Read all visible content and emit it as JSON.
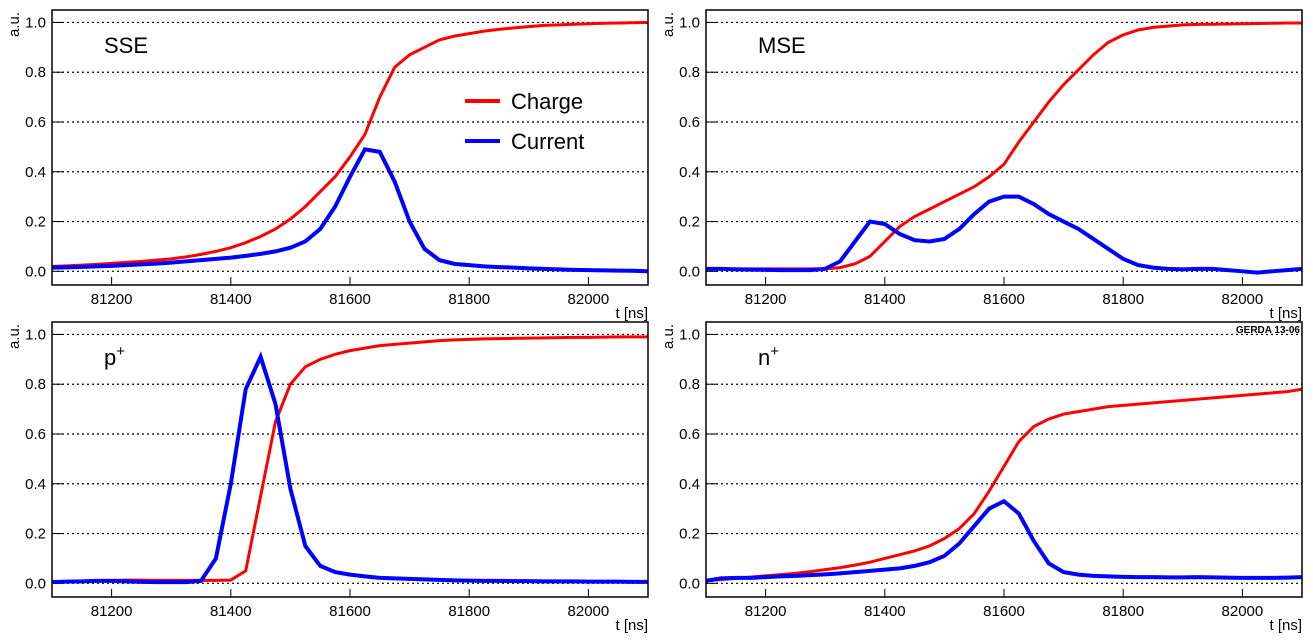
{
  "chart_data": [
    {
      "type": "line",
      "annotation": "SSE",
      "y_label": "a.u.",
      "x_label": "t [ns]",
      "legend": "upper right",
      "grid": true,
      "xlim": [
        81100,
        82100
      ],
      "xticks": [
        81200,
        81400,
        81600,
        81800,
        82000
      ],
      "ylim": [
        -0.055,
        1.05
      ],
      "yticks": [
        {
          "value": 0,
          "label": "0.0"
        },
        0.2,
        0.4,
        0.6,
        0.8,
        {
          "value": 1,
          "label": "1.0"
        }
      ],
      "x": [
        81100,
        81125,
        81150,
        81175,
        81200,
        81225,
        81250,
        81275,
        81300,
        81325,
        81350,
        81375,
        81400,
        81425,
        81450,
        81475,
        81500,
        81525,
        81550,
        81575,
        81600,
        81625,
        81650,
        81675,
        81700,
        81725,
        81750,
        81775,
        81800,
        81825,
        81850,
        81875,
        81900,
        81925,
        81950,
        81975,
        82000,
        82025,
        82050,
        82075,
        82100
      ],
      "series": [
        {
          "name": "Charge",
          "color": "#ff0000",
          "step": true,
          "values": [
            0.02,
            0.022,
            0.025,
            0.028,
            0.032,
            0.036,
            0.04,
            0.045,
            0.05,
            0.058,
            0.068,
            0.08,
            0.095,
            0.115,
            0.14,
            0.17,
            0.21,
            0.26,
            0.32,
            0.38,
            0.46,
            0.55,
            0.7,
            0.82,
            0.87,
            0.9,
            0.93,
            0.945,
            0.955,
            0.965,
            0.972,
            0.978,
            0.983,
            0.988,
            0.99,
            0.993,
            0.995,
            0.997,
            0.998,
            0.999,
            1.0
          ]
        },
        {
          "name": "Current",
          "color": "#0000ff",
          "values": [
            0.015,
            0.016,
            0.018,
            0.02,
            0.022,
            0.025,
            0.028,
            0.031,
            0.035,
            0.04,
            0.045,
            0.05,
            0.055,
            0.062,
            0.07,
            0.08,
            0.095,
            0.12,
            0.17,
            0.26,
            0.38,
            0.49,
            0.48,
            0.36,
            0.2,
            0.09,
            0.045,
            0.03,
            0.025,
            0.02,
            0.017,
            0.015,
            0.012,
            0.01,
            0.008,
            0.006,
            0.005,
            0.004,
            0.003,
            0.002,
            0.0
          ]
        }
      ]
    },
    {
      "type": "line",
      "annotation": "MSE",
      "y_label": "a.u.",
      "x_label": "t [ns]",
      "grid": true,
      "xlim": [
        81100,
        82100
      ],
      "xticks": [
        81200,
        81400,
        81600,
        81800,
        82000
      ],
      "ylim": [
        -0.055,
        1.05
      ],
      "yticks": [
        {
          "value": 0,
          "label": "0.0"
        },
        0.2,
        0.4,
        0.6,
        0.8,
        {
          "value": 1,
          "label": "1.0"
        }
      ],
      "x": [
        81100,
        81125,
        81150,
        81175,
        81200,
        81225,
        81250,
        81275,
        81300,
        81325,
        81350,
        81375,
        81400,
        81425,
        81450,
        81475,
        81500,
        81525,
        81550,
        81575,
        81600,
        81625,
        81650,
        81675,
        81700,
        81725,
        81750,
        81775,
        81800,
        81825,
        81850,
        81875,
        81900,
        81925,
        81950,
        81975,
        82000,
        82025,
        82050,
        82075,
        82100
      ],
      "series": [
        {
          "name": "Charge",
          "color": "#ff0000",
          "step": true,
          "values": [
            0.01,
            0.01,
            0.01,
            0.01,
            0.01,
            0.01,
            0.01,
            0.01,
            0.01,
            0.015,
            0.03,
            0.06,
            0.12,
            0.18,
            0.22,
            0.25,
            0.28,
            0.31,
            0.34,
            0.38,
            0.43,
            0.52,
            0.6,
            0.68,
            0.75,
            0.81,
            0.87,
            0.92,
            0.95,
            0.97,
            0.98,
            0.985,
            0.99,
            0.992,
            0.993,
            0.994,
            0.995,
            0.996,
            0.997,
            0.998,
            0.998
          ]
        },
        {
          "name": "Current",
          "color": "#0000ff",
          "values": [
            0.01,
            0.01,
            0.008,
            0.007,
            0.006,
            0.005,
            0.005,
            0.005,
            0.01,
            0.04,
            0.12,
            0.2,
            0.19,
            0.15,
            0.125,
            0.12,
            0.13,
            0.17,
            0.23,
            0.28,
            0.3,
            0.3,
            0.27,
            0.23,
            0.2,
            0.17,
            0.13,
            0.09,
            0.05,
            0.025,
            0.015,
            0.01,
            0.008,
            0.01,
            0.01,
            0.005,
            0.0,
            -0.005,
            0.0,
            0.005,
            0.01
          ]
        }
      ]
    },
    {
      "type": "line",
      "annotation": "p",
      "annotation_sup": "+",
      "y_label": "a.u.",
      "x_label": "t [ns]",
      "grid": true,
      "xlim": [
        81100,
        82100
      ],
      "xticks": [
        81200,
        81400,
        81600,
        81800,
        82000
      ],
      "ylim": [
        -0.055,
        1.05
      ],
      "yticks": [
        {
          "value": 0,
          "label": "0.0"
        },
        0.2,
        0.4,
        0.6,
        0.8,
        {
          "value": 1,
          "label": "1.0"
        }
      ],
      "x": [
        81100,
        81125,
        81150,
        81175,
        81200,
        81225,
        81250,
        81275,
        81300,
        81325,
        81350,
        81375,
        81400,
        81425,
        81450,
        81475,
        81500,
        81525,
        81550,
        81575,
        81600,
        81625,
        81650,
        81675,
        81700,
        81725,
        81750,
        81775,
        81800,
        81825,
        81850,
        81875,
        81900,
        81925,
        81950,
        81975,
        82000,
        82025,
        82050,
        82075,
        82100
      ],
      "series": [
        {
          "name": "Charge",
          "color": "#ff0000",
          "step": true,
          "values": [
            0.005,
            0.007,
            0.008,
            0.01,
            0.012,
            0.013,
            0.013,
            0.012,
            0.012,
            0.012,
            0.012,
            0.012,
            0.013,
            0.05,
            0.35,
            0.65,
            0.8,
            0.87,
            0.9,
            0.92,
            0.935,
            0.945,
            0.955,
            0.96,
            0.965,
            0.97,
            0.975,
            0.978,
            0.98,
            0.982,
            0.983,
            0.984,
            0.985,
            0.986,
            0.987,
            0.988,
            0.988,
            0.989,
            0.99,
            0.99,
            0.99
          ]
        },
        {
          "name": "Current",
          "color": "#0000ff",
          "values": [
            0.005,
            0.007,
            0.008,
            0.01,
            0.01,
            0.008,
            0.006,
            0.005,
            0.005,
            0.005,
            0.01,
            0.1,
            0.4,
            0.78,
            0.91,
            0.72,
            0.38,
            0.15,
            0.07,
            0.045,
            0.035,
            0.028,
            0.022,
            0.02,
            0.018,
            0.016,
            0.014,
            0.012,
            0.011,
            0.01,
            0.01,
            0.009,
            0.009,
            0.008,
            0.008,
            0.008,
            0.007,
            0.007,
            0.007,
            0.006,
            0.006
          ]
        }
      ]
    },
    {
      "type": "line",
      "annotation": "n",
      "annotation_sup": "+",
      "watermark": "GERDA 13-06",
      "y_label": "a.u.",
      "x_label": "t [ns]",
      "grid": true,
      "xlim": [
        81100,
        82100
      ],
      "xticks": [
        81200,
        81400,
        81600,
        81800,
        82000
      ],
      "ylim": [
        -0.055,
        1.05
      ],
      "yticks": [
        {
          "value": 0,
          "label": "0.0"
        },
        0.2,
        0.4,
        0.6,
        0.8,
        {
          "value": 1,
          "label": "1.0"
        }
      ],
      "x": [
        81100,
        81125,
        81150,
        81175,
        81200,
        81225,
        81250,
        81275,
        81300,
        81325,
        81350,
        81375,
        81400,
        81425,
        81450,
        81475,
        81500,
        81525,
        81550,
        81575,
        81600,
        81625,
        81650,
        81675,
        81700,
        81725,
        81750,
        81775,
        81800,
        81825,
        81850,
        81875,
        81900,
        81925,
        81950,
        81975,
        82000,
        82025,
        82050,
        82075,
        82100
      ],
      "series": [
        {
          "name": "Charge",
          "color": "#ff0000",
          "step": true,
          "values": [
            0.01,
            0.015,
            0.02,
            0.025,
            0.03,
            0.035,
            0.04,
            0.047,
            0.055,
            0.063,
            0.073,
            0.085,
            0.1,
            0.115,
            0.13,
            0.15,
            0.18,
            0.22,
            0.28,
            0.37,
            0.47,
            0.57,
            0.63,
            0.66,
            0.68,
            0.69,
            0.7,
            0.71,
            0.715,
            0.72,
            0.725,
            0.73,
            0.735,
            0.74,
            0.745,
            0.75,
            0.755,
            0.76,
            0.765,
            0.77,
            0.78
          ]
        },
        {
          "name": "Current",
          "color": "#0000ff",
          "values": [
            0.01,
            0.02,
            0.022,
            0.022,
            0.025,
            0.028,
            0.03,
            0.033,
            0.036,
            0.04,
            0.045,
            0.05,
            0.055,
            0.06,
            0.07,
            0.085,
            0.11,
            0.16,
            0.23,
            0.3,
            0.33,
            0.28,
            0.17,
            0.08,
            0.045,
            0.035,
            0.03,
            0.028,
            0.026,
            0.025,
            0.025,
            0.024,
            0.024,
            0.025,
            0.024,
            0.023,
            0.022,
            0.022,
            0.022,
            0.023,
            0.025
          ]
        }
      ]
    }
  ]
}
